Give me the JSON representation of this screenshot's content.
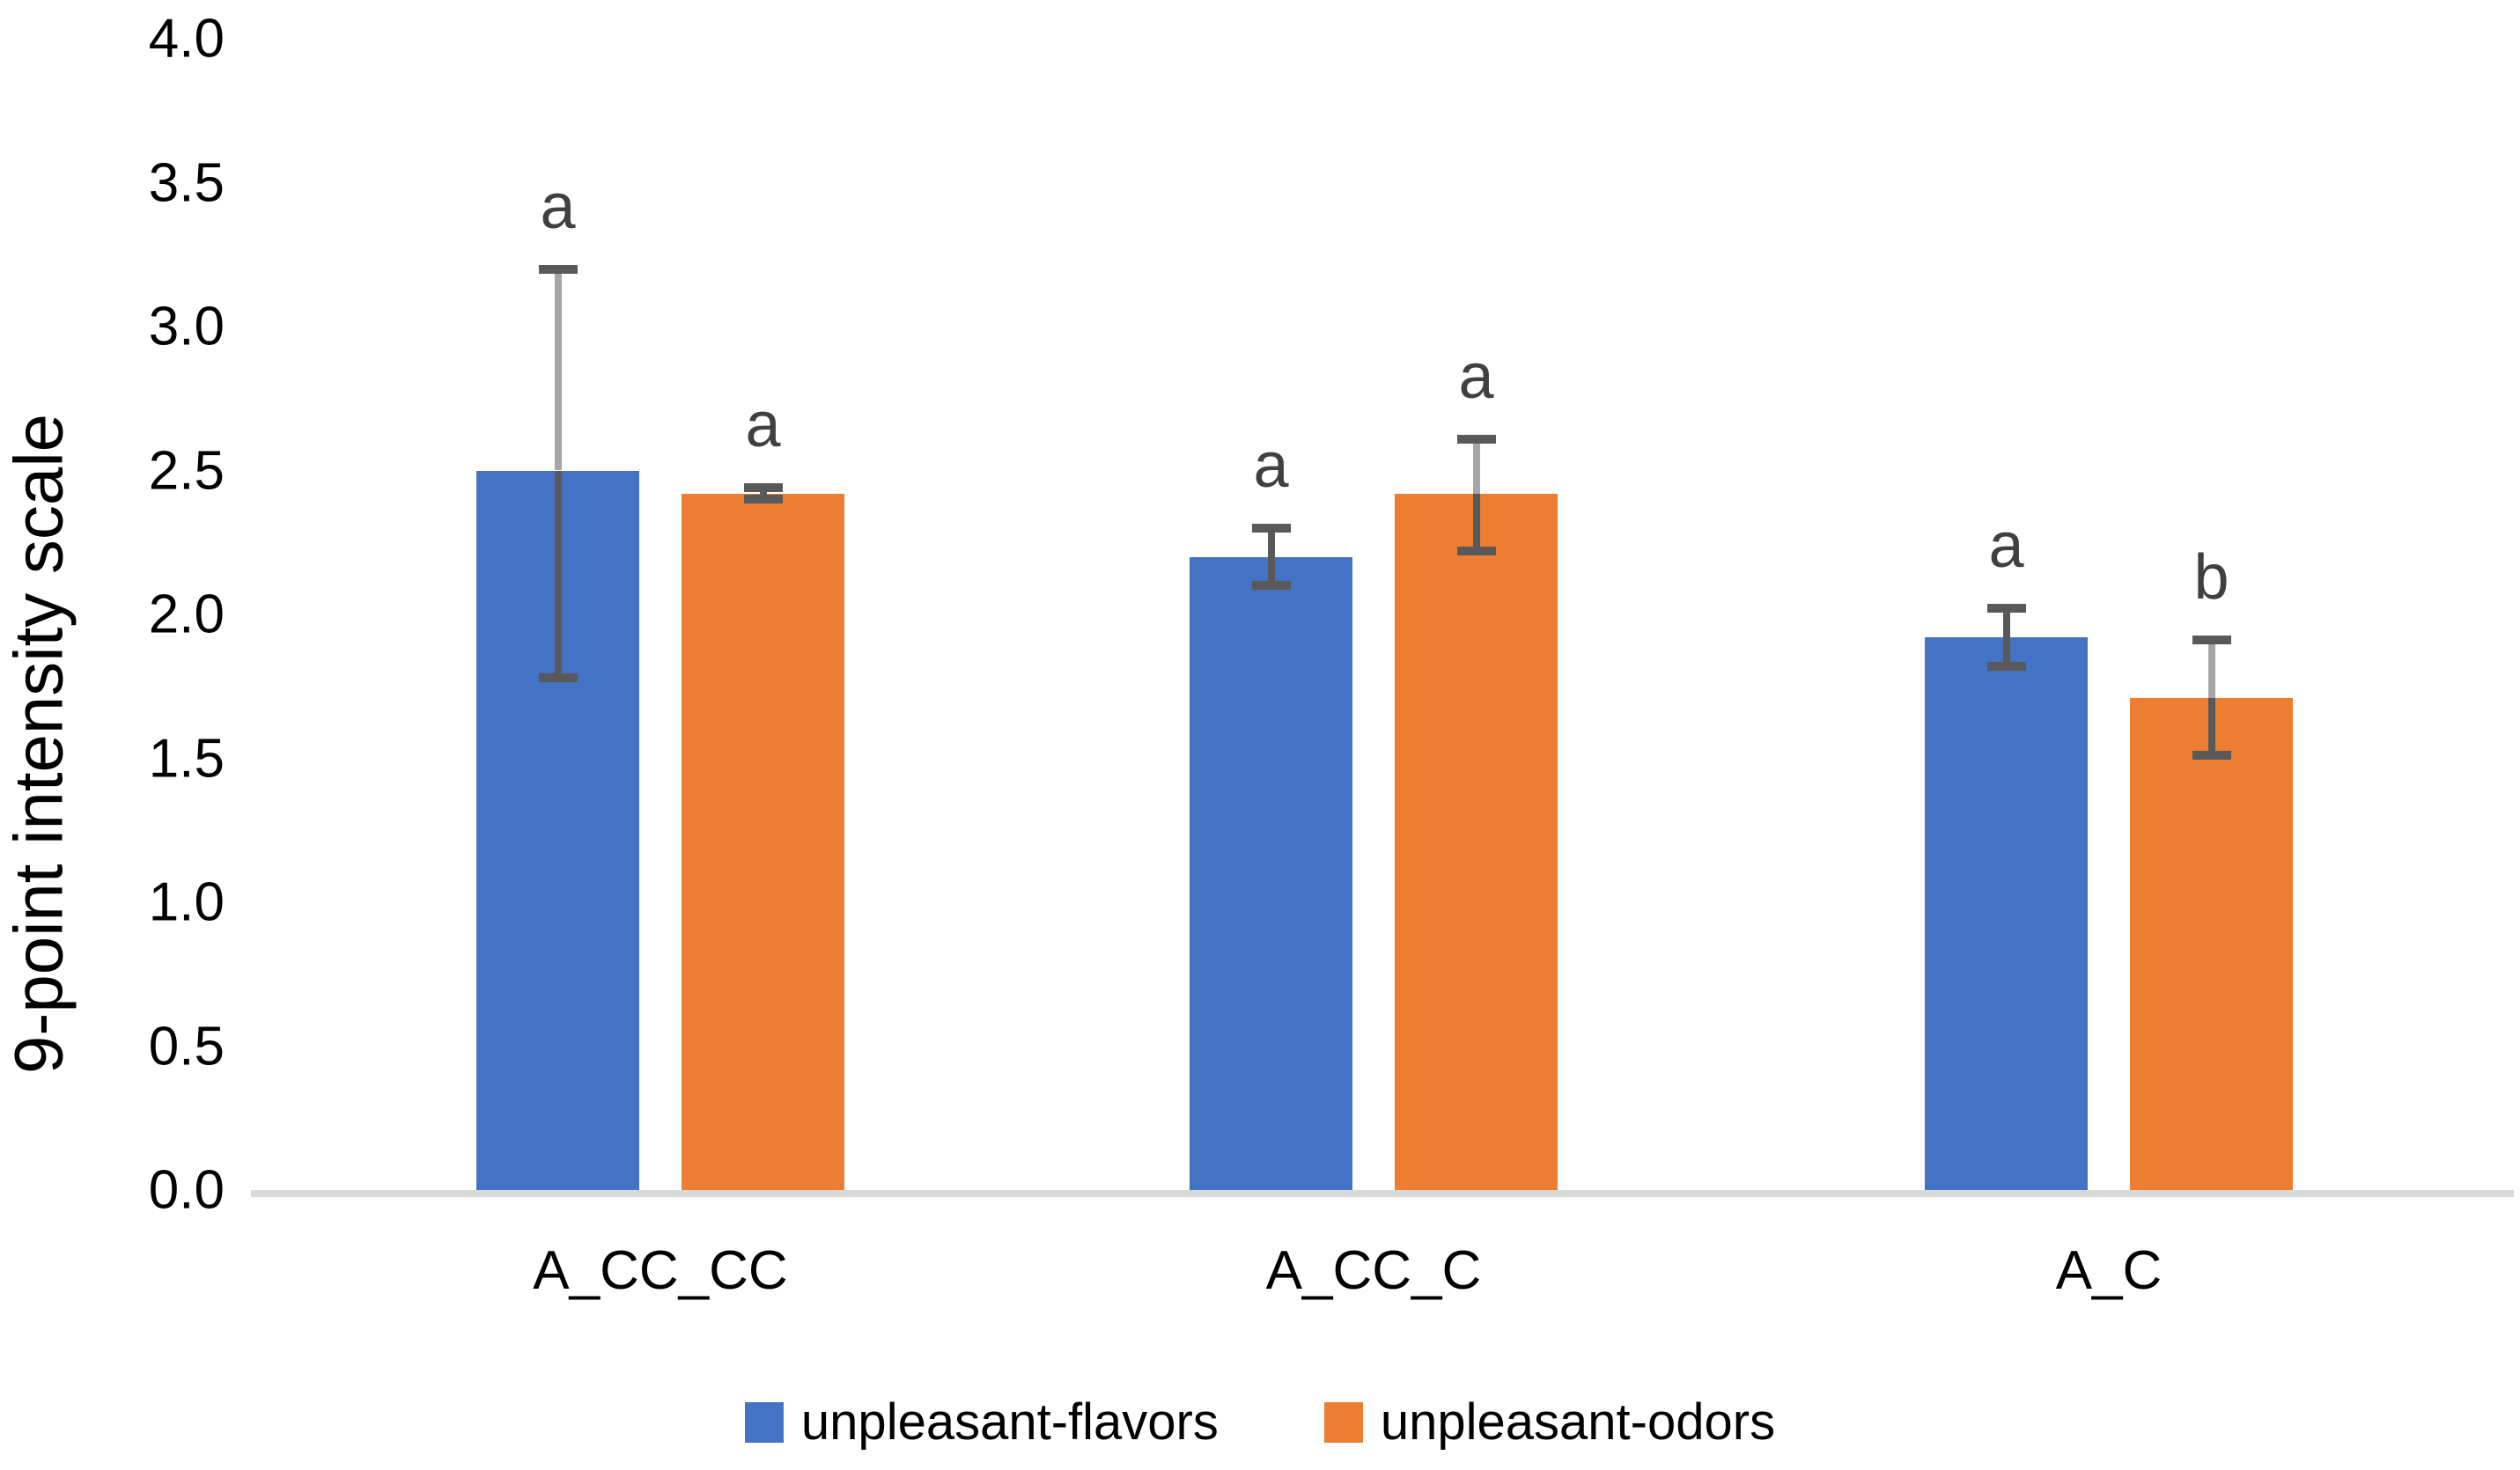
{
  "chart_data": {
    "type": "bar",
    "title": "",
    "ylabel": "9-point intensity scale",
    "xlabel": "",
    "ylim": [
      0.0,
      4.0
    ],
    "ytick_step": 0.5,
    "ytick_labels": [
      "0.0",
      "0.5",
      "1.0",
      "1.5",
      "2.0",
      "2.5",
      "3.0",
      "3.5",
      "4.0"
    ],
    "grid": false,
    "legend_position": "bottom",
    "categories": [
      "A_CC_CC",
      "A_CC_C",
      "A_C"
    ],
    "series": [
      {
        "name": "unpleasant-flavors",
        "color": "#4472C4",
        "values": [
          2.5,
          2.2,
          1.92
        ],
        "error_top": [
          3.2,
          2.3,
          2.02
        ],
        "error_bottom": [
          1.78,
          2.1,
          1.82
        ],
        "sig_letters": [
          "a",
          "a",
          "a"
        ],
        "error_above_light": [
          true,
          false,
          false
        ]
      },
      {
        "name": "unpleasant-odors",
        "color": "#ED7D31",
        "values": [
          2.42,
          2.42,
          1.71
        ],
        "error_top": [
          2.44,
          2.61,
          1.91
        ],
        "error_bottom": [
          2.4,
          2.22,
          1.51
        ],
        "sig_letters": [
          "a",
          "a",
          "b"
        ],
        "error_above_light": [
          false,
          true,
          true
        ]
      }
    ],
    "colors": {
      "axis_line": "#D9D9D9",
      "error_bar_dark": "#595959",
      "error_bar_light": "#A6A6A6",
      "sig_letter": "#404040",
      "text": "#000000",
      "background": "#FFFFFF"
    }
  }
}
